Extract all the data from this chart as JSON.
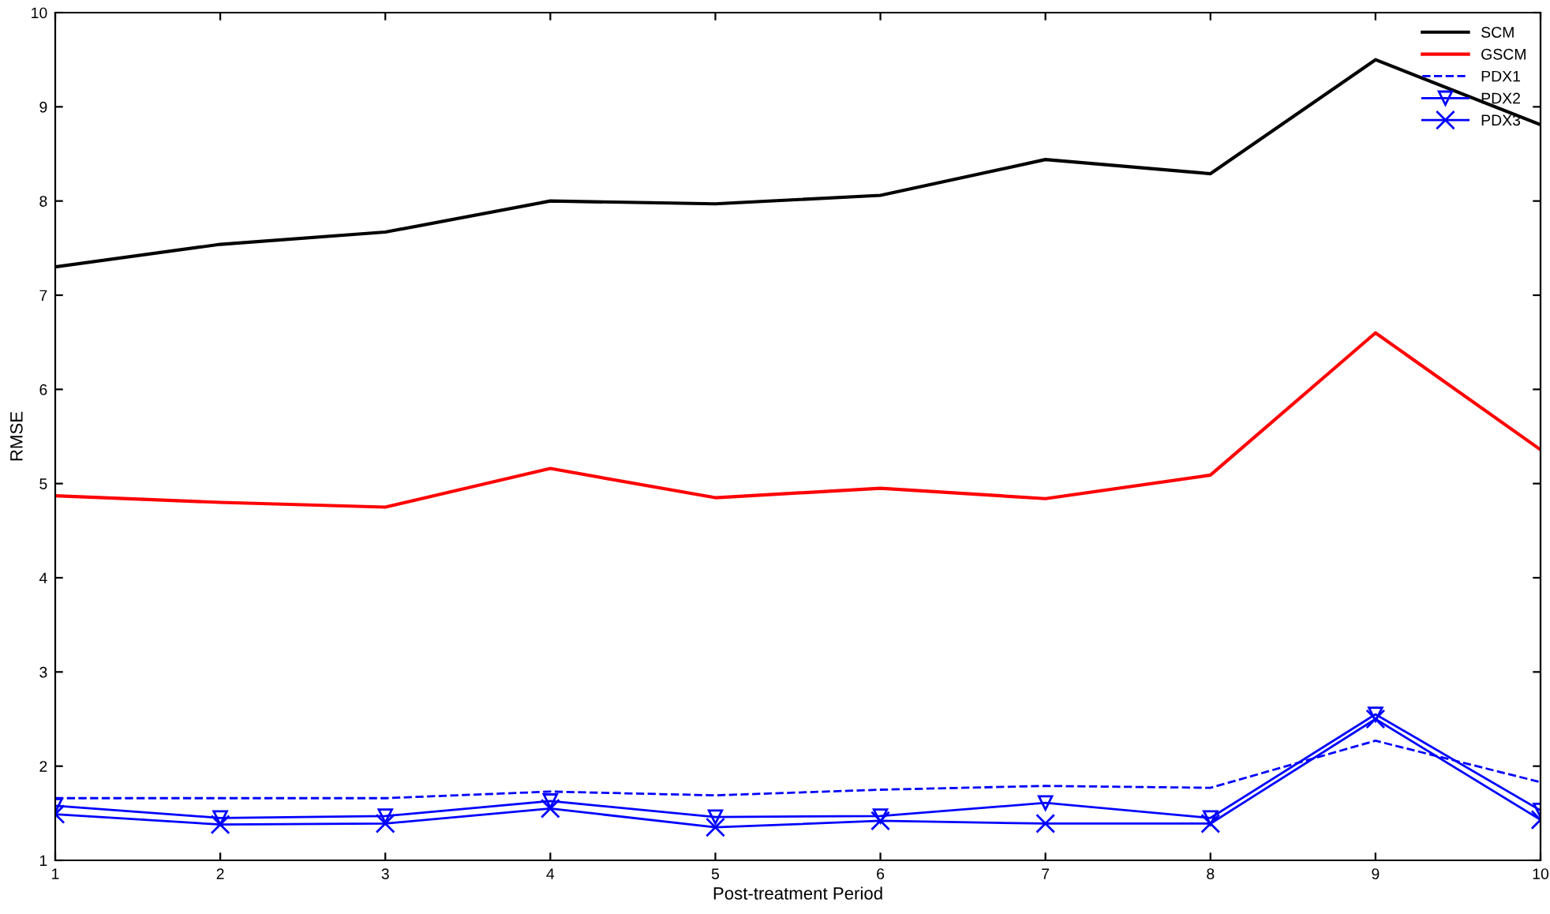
{
  "chart_data": {
    "type": "line",
    "xlabel": "Post-treatment Period",
    "ylabel": "RMSE",
    "x": [
      1,
      2,
      3,
      4,
      5,
      6,
      7,
      8,
      9,
      10
    ],
    "xlim": [
      1,
      10
    ],
    "ylim": [
      1,
      10
    ],
    "xticks": [
      1,
      2,
      3,
      4,
      5,
      6,
      7,
      8,
      9,
      10
    ],
    "yticks": [
      1,
      2,
      3,
      4,
      5,
      6,
      7,
      8,
      9,
      10
    ],
    "grid": false,
    "legend": "top right",
    "series": [
      {
        "name": "SCM",
        "color": "#000000",
        "line_style": "solid",
        "marker": "none",
        "values": [
          7.3,
          7.54,
          7.67,
          8.0,
          7.97,
          8.06,
          8.44,
          8.29,
          9.5,
          8.81
        ]
      },
      {
        "name": "GSCM",
        "color": "#ff0000",
        "line_style": "solid",
        "marker": "none",
        "values": [
          4.87,
          4.8,
          4.75,
          5.16,
          4.85,
          4.95,
          4.84,
          5.09,
          6.6,
          5.36
        ]
      },
      {
        "name": "PDX1",
        "color": "#0000ff",
        "line_style": "dashed",
        "marker": "none",
        "values": [
          1.66,
          1.66,
          1.66,
          1.73,
          1.69,
          1.75,
          1.79,
          1.77,
          2.27,
          1.83
        ]
      },
      {
        "name": "PDX2",
        "color": "#0000ff",
        "line_style": "solid",
        "marker": "triangle",
        "values": [
          1.58,
          1.45,
          1.47,
          1.63,
          1.46,
          1.47,
          1.61,
          1.45,
          2.55,
          1.53
        ]
      },
      {
        "name": "PDX3",
        "color": "#0000ff",
        "line_style": "solid",
        "marker": "cross",
        "values": [
          1.49,
          1.38,
          1.39,
          1.55,
          1.35,
          1.42,
          1.39,
          1.39,
          2.5,
          1.43
        ]
      }
    ]
  }
}
